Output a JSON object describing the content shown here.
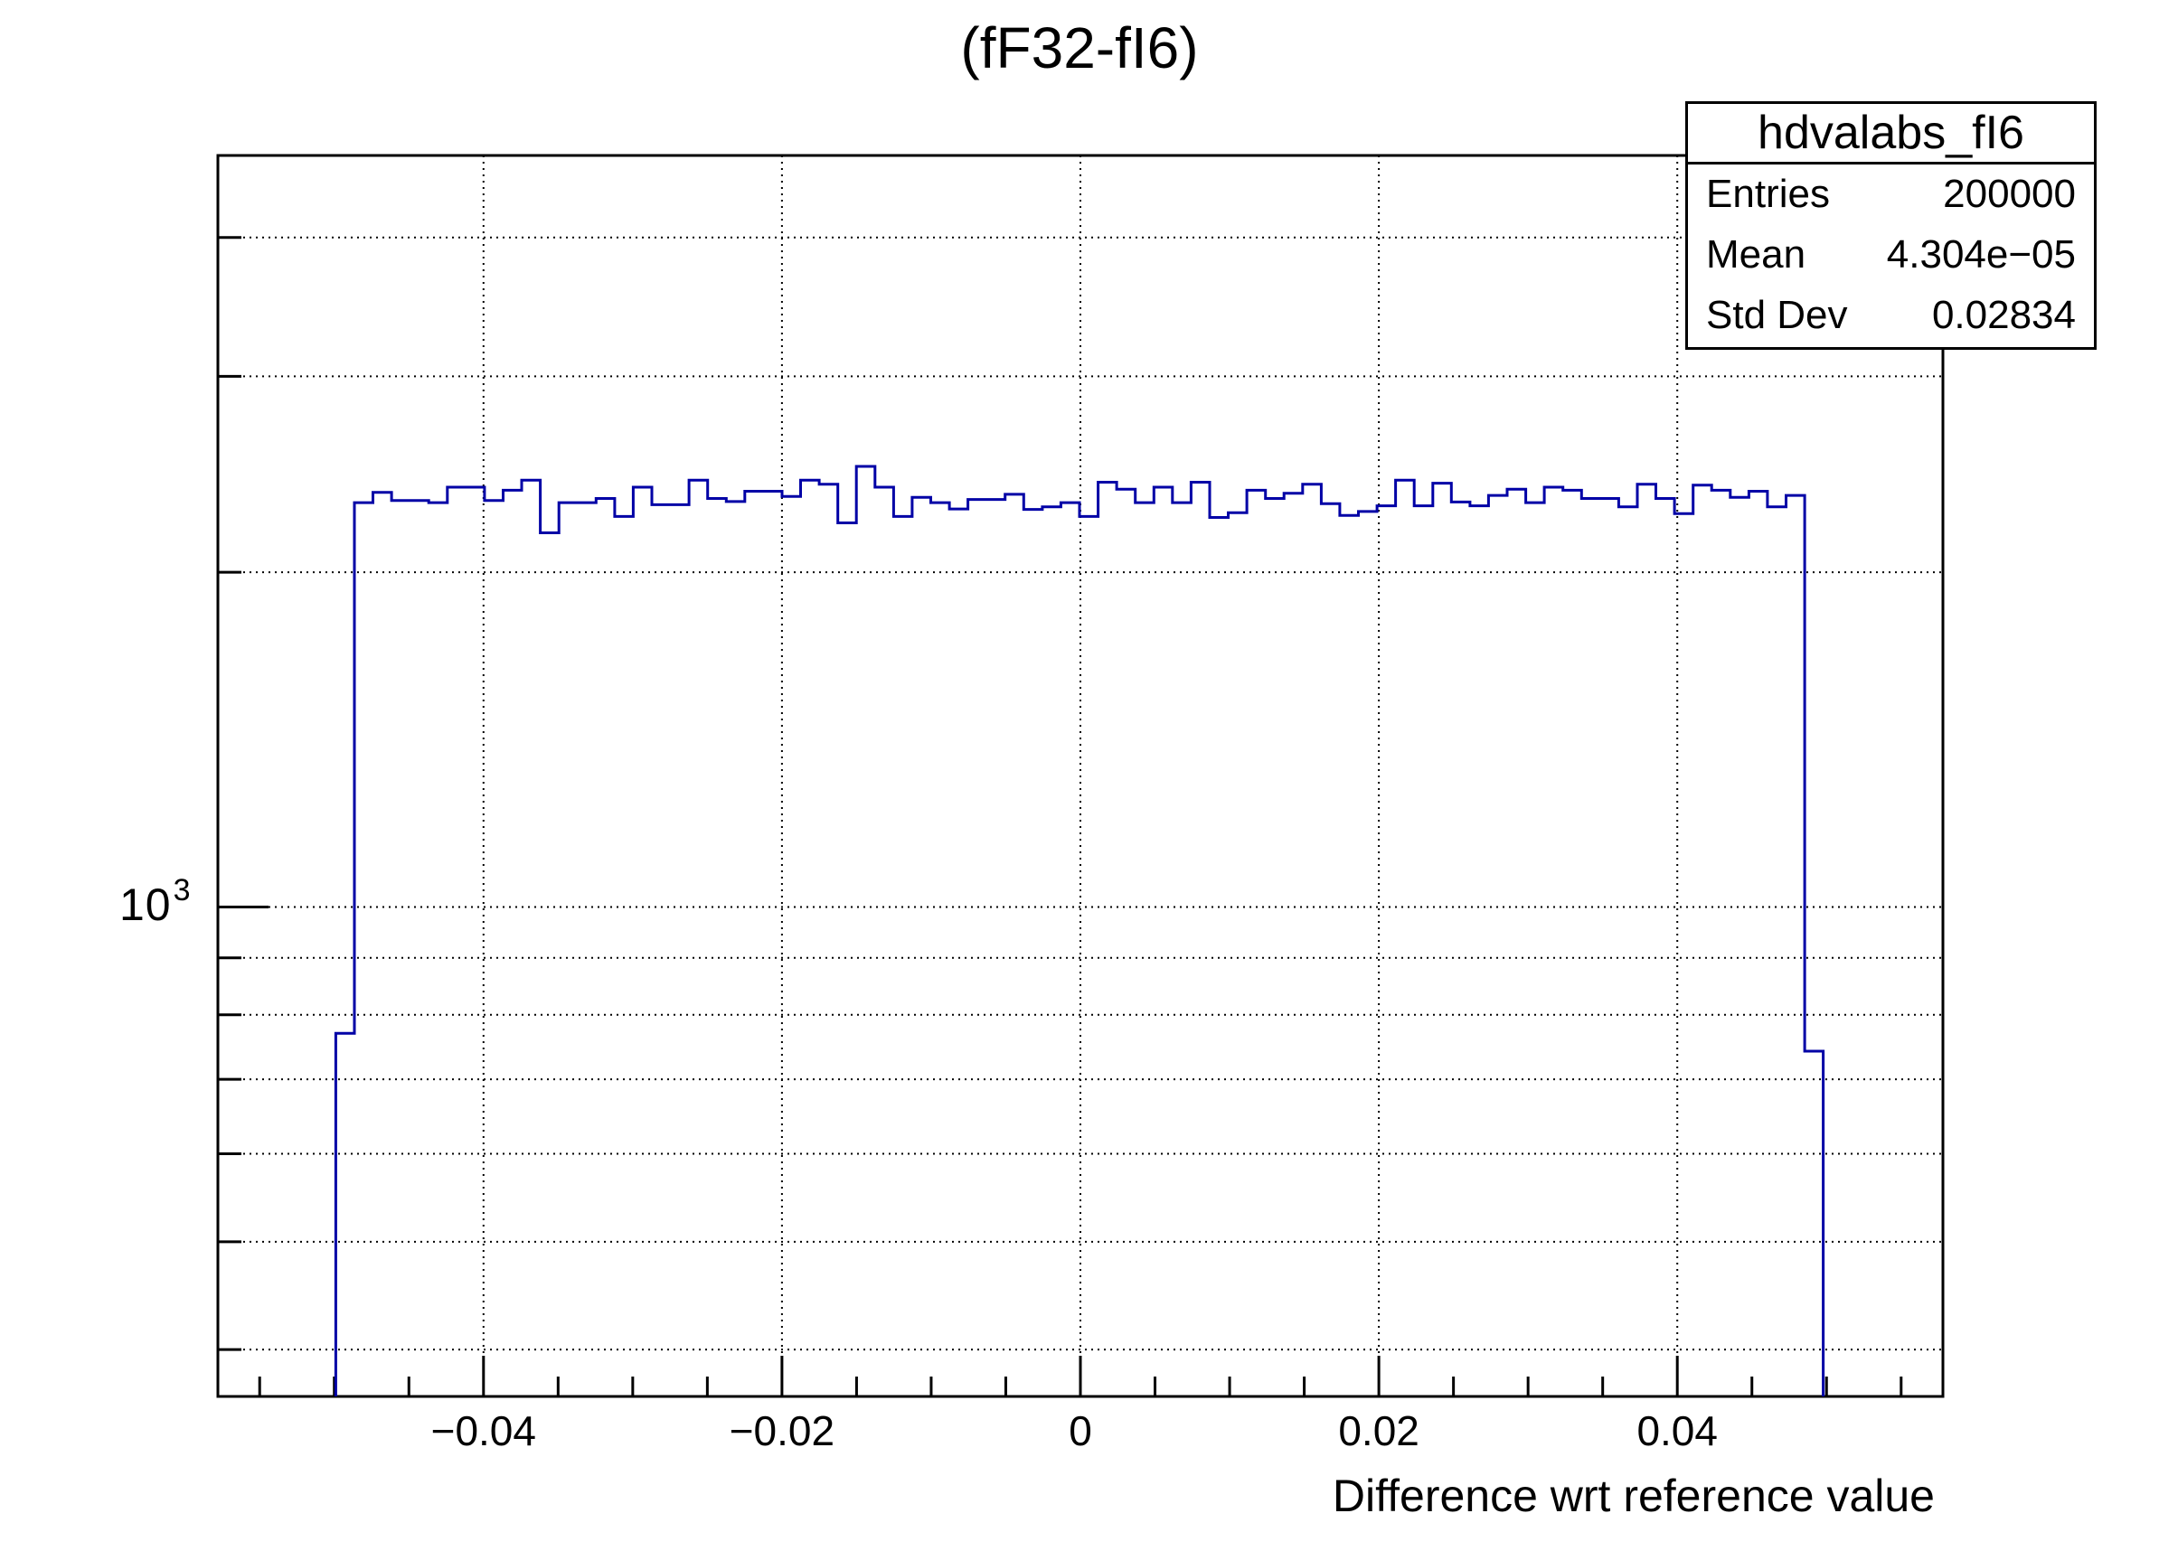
{
  "stats_box": {
    "name": "hdvalabs_fI6",
    "rows": [
      {
        "label": "Entries",
        "value": "200000"
      },
      {
        "label": "Mean",
        "value": "4.304e−05"
      },
      {
        "label": "Std Dev",
        "value": "0.02834"
      }
    ]
  },
  "y_axis": {
    "label_mantissa": "10",
    "label_exponent": "3"
  },
  "x_axis": {
    "tick_labels": [
      "−0.04",
      "−0.02",
      "0",
      "0.02",
      "0.04"
    ]
  },
  "chart_data": {
    "type": "bar",
    "subtype": "histogram-step-outline",
    "title": "(fF32-fI6)",
    "xlabel": "Difference wrt reference value",
    "ylabel": "",
    "histogram_name": "hdvalabs_fI6",
    "entries": 200000,
    "mean": 4.304e-05,
    "std_dev": 0.02834,
    "x_start": -0.0499,
    "bin_width": 0.001246,
    "values": [
      770,
      2310,
      2360,
      2320,
      2320,
      2310,
      2385,
      2385,
      2320,
      2370,
      2420,
      2170,
      2310,
      2310,
      2330,
      2245,
      2385,
      2300,
      2300,
      2420,
      2330,
      2315,
      2365,
      2365,
      2340,
      2420,
      2400,
      2215,
      2490,
      2385,
      2245,
      2335,
      2310,
      2280,
      2325,
      2325,
      2350,
      2278,
      2290,
      2310,
      2245,
      2410,
      2375,
      2310,
      2385,
      2310,
      2410,
      2240,
      2262,
      2370,
      2330,
      2355,
      2400,
      2305,
      2250,
      2268,
      2295,
      2420,
      2295,
      2405,
      2313,
      2295,
      2345,
      2375,
      2310,
      2385,
      2370,
      2330,
      2330,
      2290,
      2400,
      2330,
      2258,
      2395,
      2370,
      2335,
      2365,
      2290,
      2345,
      742
    ],
    "xlim": [
      -0.0578,
      0.0578
    ],
    "ylim": [
      363,
      4740
    ],
    "yscale": "log",
    "x_major_ticks": [
      -0.04,
      -0.02,
      0,
      0.02,
      0.04
    ],
    "x_minor_tick_start": -0.055,
    "x_minor_tick_step": 0.005,
    "x_minor_tick_count": 23,
    "y_grid_values": [
      400,
      500,
      600,
      700,
      800,
      900,
      1000,
      2000,
      3000,
      4000
    ],
    "y_labeled_tick": 1000,
    "grid": true,
    "legend_position": "none",
    "line_color": "#0000a6",
    "grid_color": "#000000",
    "background_color": "#ffffff"
  }
}
